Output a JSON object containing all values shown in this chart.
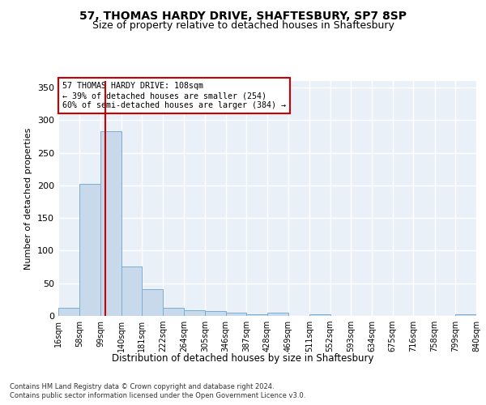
{
  "title1": "57, THOMAS HARDY DRIVE, SHAFTESBURY, SP7 8SP",
  "title2": "Size of property relative to detached houses in Shaftesbury",
  "xlabel": "Distribution of detached houses by size in Shaftesbury",
  "ylabel": "Number of detached properties",
  "annotation_line1": "57 THOMAS HARDY DRIVE: 108sqm",
  "annotation_line2": "← 39% of detached houses are smaller (254)",
  "annotation_line3": "60% of semi-detached houses are larger (384) →",
  "marker_value": 108,
  "bins": [
    16,
    58,
    99,
    140,
    181,
    222,
    264,
    305,
    346,
    387,
    428,
    469,
    511,
    552,
    593,
    634,
    675,
    716,
    758,
    799,
    840
  ],
  "bin_heights": [
    12,
    202,
    283,
    76,
    41,
    13,
    9,
    7,
    5,
    3,
    5,
    0,
    2,
    0,
    0,
    0,
    0,
    0,
    0,
    2
  ],
  "bar_color": "#c9d9ec",
  "bar_edge_color": "#7aaed4",
  "marker_color": "#cc0000",
  "background_color": "#eaf0f8",
  "grid_color": "#ffffff",
  "footer1": "Contains HM Land Registry data © Crown copyright and database right 2024.",
  "footer2": "Contains public sector information licensed under the Open Government Licence v3.0.",
  "ylim": [
    0,
    360
  ],
  "yticks": [
    0,
    50,
    100,
    150,
    200,
    250,
    300,
    350
  ]
}
